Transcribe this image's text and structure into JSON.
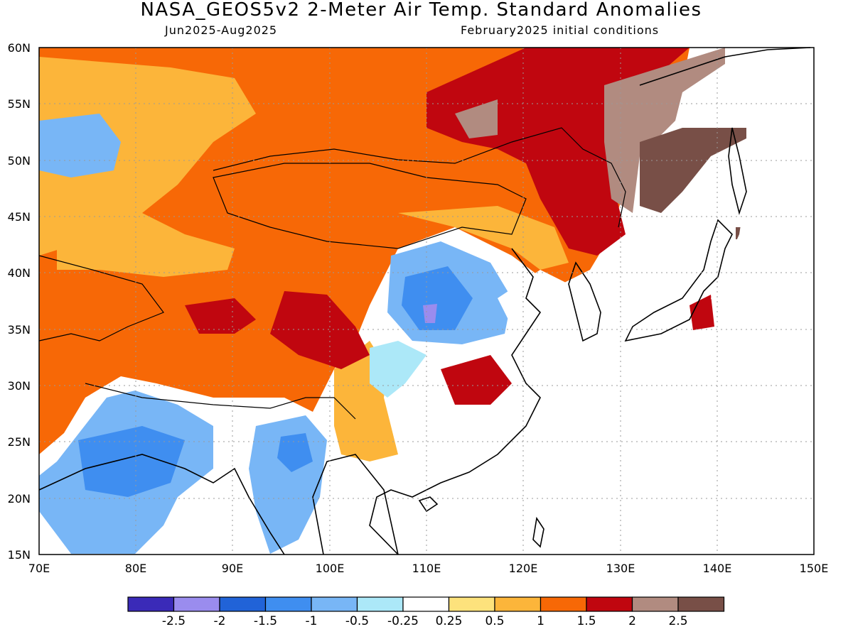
{
  "header": {
    "title": "NASA_GEOS5v2 2-Meter Air Temp. Standard Anomalies",
    "period": "Jun2025-Aug2025",
    "init": "February2025 initial conditions"
  },
  "map": {
    "region": "East Asia",
    "lat_labels": [
      "60N",
      "55N",
      "50N",
      "45N",
      "40N",
      "35N",
      "30N",
      "25N",
      "20N",
      "15N"
    ],
    "lon_labels": [
      "70E",
      "80E",
      "90E",
      "100E",
      "110E",
      "120E",
      "130E",
      "140E",
      "150E"
    ]
  },
  "legend": {
    "colors": [
      "#3a2ab8",
      "#9a8cee",
      "#2163d8",
      "#3f8ef0",
      "#78b6f6",
      "#ace8f8",
      "#ffffff",
      "#fde27c",
      "#fcb53a",
      "#f76806",
      "#c0060f",
      "#b18b80",
      "#784f47"
    ],
    "labels": [
      "-2.5",
      "-2",
      "-1.5",
      "-1",
      "-0.5",
      "-0.25",
      "0.25",
      "0.5",
      "1",
      "1.5",
      "2",
      "2.5"
    ]
  }
}
